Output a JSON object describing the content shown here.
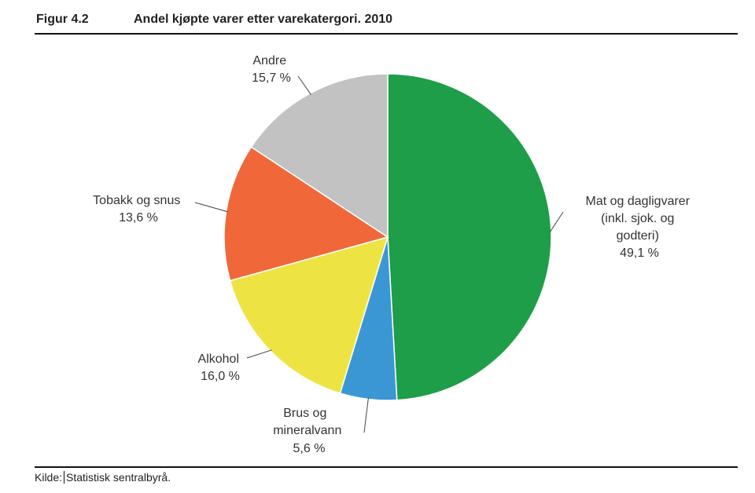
{
  "figure": {
    "number": "Figur 4.2",
    "title": "Andel kjøpte varer etter varekatergori. 2010"
  },
  "chart_data": {
    "type": "pie",
    "title": "Andel kjøpte varer etter varekatergori. 2010",
    "unit": "%",
    "start": "12 o'clock",
    "direction": "clockwise",
    "slices": [
      {
        "key": "mat",
        "label_lines": [
          "Mat og dagligvarer",
          "(inkl. sjok. og",
          "godteri)"
        ],
        "value": 49.1,
        "value_text": "49,1 %",
        "color": "#1e9e48"
      },
      {
        "key": "brus",
        "label_lines": [
          "Brus og",
          "mineralvann"
        ],
        "value": 5.6,
        "value_text": "5,6 %",
        "color": "#3a97d4"
      },
      {
        "key": "alkohol",
        "label_lines": [
          "Alkohol"
        ],
        "value": 16.0,
        "value_text": "16,0 %",
        "color": "#ede443"
      },
      {
        "key": "tobakk",
        "label_lines": [
          "Tobakk og snus"
        ],
        "value": 13.6,
        "value_text": "13,6 %",
        "color": "#f0683a"
      },
      {
        "key": "andre",
        "label_lines": [
          "Andre"
        ],
        "value": 15.7,
        "value_text": "15,7 %",
        "color": "#c2c2c2"
      }
    ]
  },
  "footer": {
    "source_label": "Kilde:",
    "source": "Statistisk sentralbyrå."
  }
}
